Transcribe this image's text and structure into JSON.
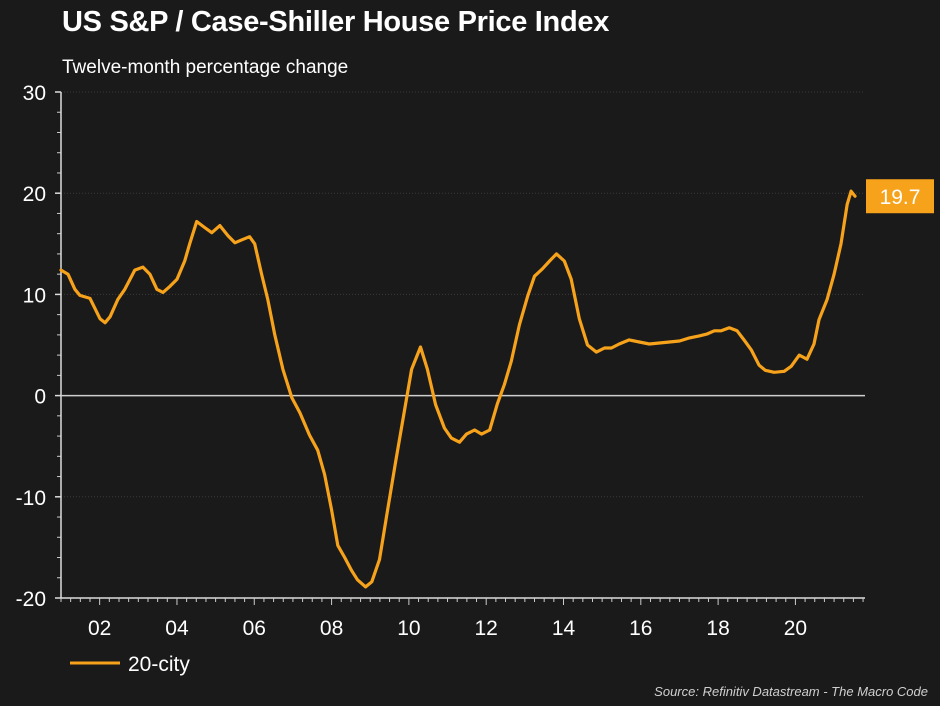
{
  "chart_data": {
    "type": "line",
    "title": "US S&P / Case-Shiller House Price Index",
    "subtitle": "Twelve-month percentage change",
    "source": "Source: Refinitiv Datastream - The Macro Code",
    "xlabel": "",
    "ylabel": "",
    "xlim": [
      2001.0,
      2021.8
    ],
    "ylim": [
      -20,
      30
    ],
    "yticks": [
      30,
      20,
      10,
      0,
      -10,
      -20
    ],
    "xticks": [
      {
        "value": 2002,
        "label": "02"
      },
      {
        "value": 2004,
        "label": "04"
      },
      {
        "value": 2006,
        "label": "06"
      },
      {
        "value": 2008,
        "label": "08"
      },
      {
        "value": 2010,
        "label": "10"
      },
      {
        "value": 2012,
        "label": "12"
      },
      {
        "value": 2014,
        "label": "14"
      },
      {
        "value": 2016,
        "label": "16"
      },
      {
        "value": 2018,
        "label": "18"
      },
      {
        "value": 2020,
        "label": "20"
      }
    ],
    "grid": true,
    "legend_position": "bottom-left",
    "last_value_label": "19.7",
    "series": [
      {
        "name": "20-city",
        "color": "#f7a21b",
        "x": [
          2001.0,
          2001.18,
          2001.36,
          2001.49,
          2001.75,
          2001.88,
          2002.01,
          2002.14,
          2002.27,
          2002.47,
          2002.65,
          2002.91,
          2003.12,
          2003.3,
          2003.48,
          2003.64,
          2003.82,
          2004.0,
          2004.2,
          2004.33,
          2004.51,
          2004.72,
          2004.9,
          2005.11,
          2005.32,
          2005.5,
          2005.68,
          2005.88,
          2006.01,
          2006.19,
          2006.35,
          2006.53,
          2006.74,
          2006.97,
          2007.18,
          2007.43,
          2007.64,
          2007.82,
          2008.0,
          2008.16,
          2008.34,
          2008.52,
          2008.67,
          2008.88,
          2009.04,
          2009.24,
          2009.45,
          2009.66,
          2009.89,
          2010.07,
          2010.3,
          2010.48,
          2010.69,
          2010.92,
          2011.1,
          2011.31,
          2011.49,
          2011.7,
          2011.88,
          2012.09,
          2012.29,
          2012.47,
          2012.65,
          2012.86,
          2013.07,
          2013.25,
          2013.45,
          2013.64,
          2013.82,
          2014.02,
          2014.2,
          2014.41,
          2014.62,
          2014.85,
          2015.06,
          2015.24,
          2015.44,
          2015.7,
          2015.96,
          2016.22,
          2016.48,
          2016.74,
          2017.0,
          2017.26,
          2017.51,
          2017.72,
          2017.9,
          2018.08,
          2018.29,
          2018.49,
          2018.67,
          2018.86,
          2019.06,
          2019.22,
          2019.45,
          2019.71,
          2019.89,
          2020.1,
          2020.3,
          2020.48,
          2020.61,
          2020.82,
          2021.0,
          2021.18,
          2021.34,
          2021.44,
          2021.54
        ],
        "values": [
          12.4,
          12.0,
          10.5,
          9.9,
          9.6,
          8.6,
          7.6,
          7.2,
          7.8,
          9.5,
          10.5,
          12.4,
          12.7,
          12.0,
          10.5,
          10.2,
          10.8,
          11.5,
          13.3,
          15.0,
          17.2,
          16.6,
          16.1,
          16.8,
          15.8,
          15.1,
          15.4,
          15.7,
          15.0,
          12.0,
          9.5,
          6.0,
          2.6,
          -0.2,
          -1.7,
          -3.9,
          -5.4,
          -7.8,
          -11.3,
          -14.8,
          -16.0,
          -17.3,
          -18.2,
          -18.9,
          -18.4,
          -16.2,
          -11.3,
          -6.5,
          -1.4,
          2.6,
          4.8,
          2.6,
          -0.9,
          -3.2,
          -4.2,
          -4.6,
          -3.8,
          -3.4,
          -3.8,
          -3.4,
          -0.8,
          1.1,
          3.4,
          7.0,
          9.8,
          11.8,
          12.5,
          13.3,
          14.0,
          13.3,
          11.5,
          7.6,
          5.0,
          4.3,
          4.7,
          4.7,
          5.1,
          5.5,
          5.3,
          5.1,
          5.2,
          5.3,
          5.4,
          5.7,
          5.9,
          6.1,
          6.4,
          6.4,
          6.7,
          6.4,
          5.5,
          4.5,
          3.0,
          2.5,
          2.3,
          2.4,
          2.9,
          4.0,
          3.6,
          5.1,
          7.5,
          9.5,
          12.0,
          15.0,
          18.9,
          20.2,
          19.7
        ]
      }
    ]
  }
}
